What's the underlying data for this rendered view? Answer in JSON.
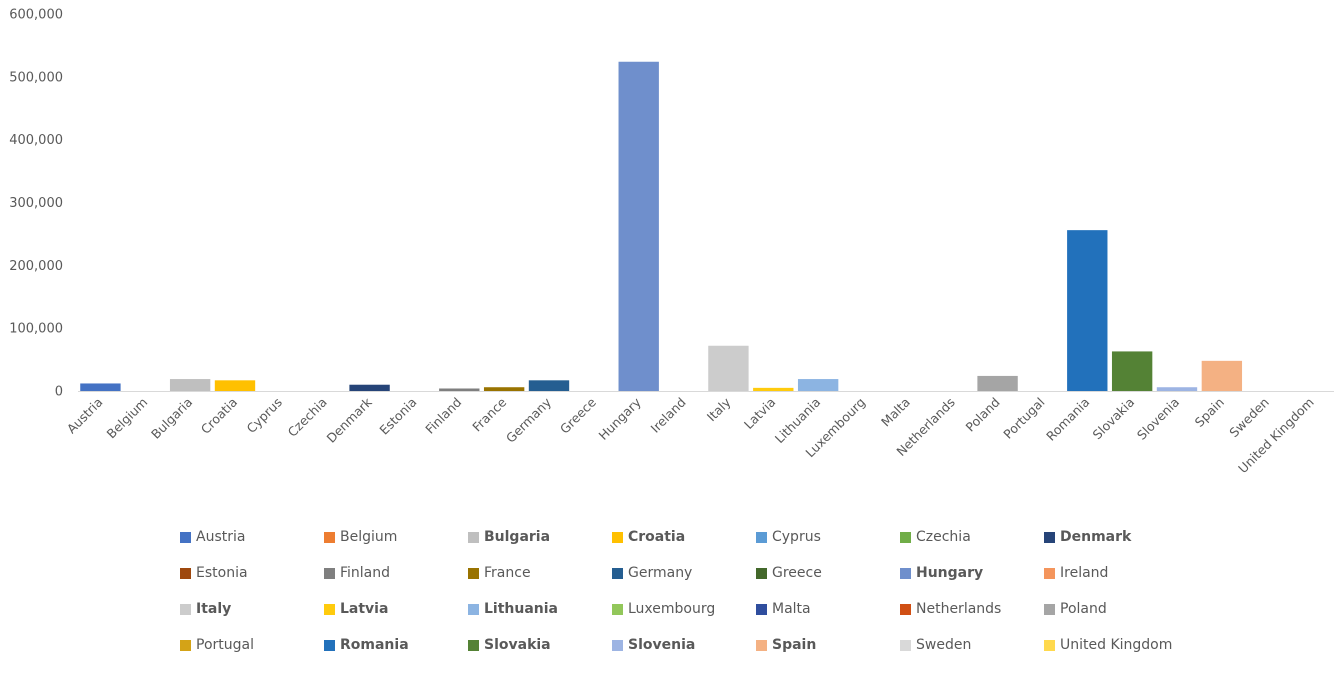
{
  "chart_data": {
    "type": "bar",
    "categories": [
      "Austria",
      "Belgium",
      "Bulgaria",
      "Croatia",
      "Cyprus",
      "Czechia",
      "Denmark",
      "Estonia",
      "Finland",
      "France",
      "Germany",
      "Greece",
      "Hungary",
      "Ireland",
      "Italy",
      "Latvia",
      "Lithuania",
      "Luxembourg",
      "Malta",
      "Netherlands",
      "Poland",
      "Portugal",
      "Romania",
      "Slovakia",
      "Slovenia",
      "Spain",
      "Sweden",
      "United Kingdom"
    ],
    "values": [
      12000,
      0,
      19000,
      17000,
      0,
      0,
      10000,
      0,
      4000,
      6000,
      17000,
      0,
      524000,
      0,
      72000,
      5000,
      19000,
      0,
      0,
      0,
      24000,
      0,
      256000,
      63000,
      6000,
      48000,
      0,
      0
    ],
    "colors": [
      "#4472C4",
      "#ED7D31",
      "#BFBFBF",
      "#FFC000",
      "#5B9BD5",
      "#70AD47",
      "#264478",
      "#9E480E",
      "#7F7F7F",
      "#997300",
      "#255E91",
      "#43682B",
      "#6F8FCC",
      "#F4955C",
      "#CCCCCC",
      "#FFCB0D",
      "#8CB4E2",
      "#92C75A",
      "#2F4E9E",
      "#D04F14",
      "#A5A5A5",
      "#D4A317",
      "#2271BB",
      "#548235",
      "#9DB4E3",
      "#F4B183",
      "#D9D9D9",
      "#FFD94D"
    ],
    "bold_legend": [
      "Bulgaria",
      "Croatia",
      "Denmark",
      "Hungary",
      "Italy",
      "Latvia",
      "Lithuania",
      "Romania",
      "Slovakia",
      "Slovenia",
      "Spain"
    ],
    "ylim": [
      0,
      600000
    ],
    "yticks": [
      0,
      100000,
      200000,
      300000,
      400000,
      500000,
      600000
    ],
    "ytick_labels": [
      "0",
      "100,000",
      "200,000",
      "300,000",
      "400,000",
      "500,000",
      "600,000"
    ],
    "grid": false,
    "legend_position": "bottom",
    "title": "",
    "xlabel": "",
    "ylabel": ""
  }
}
